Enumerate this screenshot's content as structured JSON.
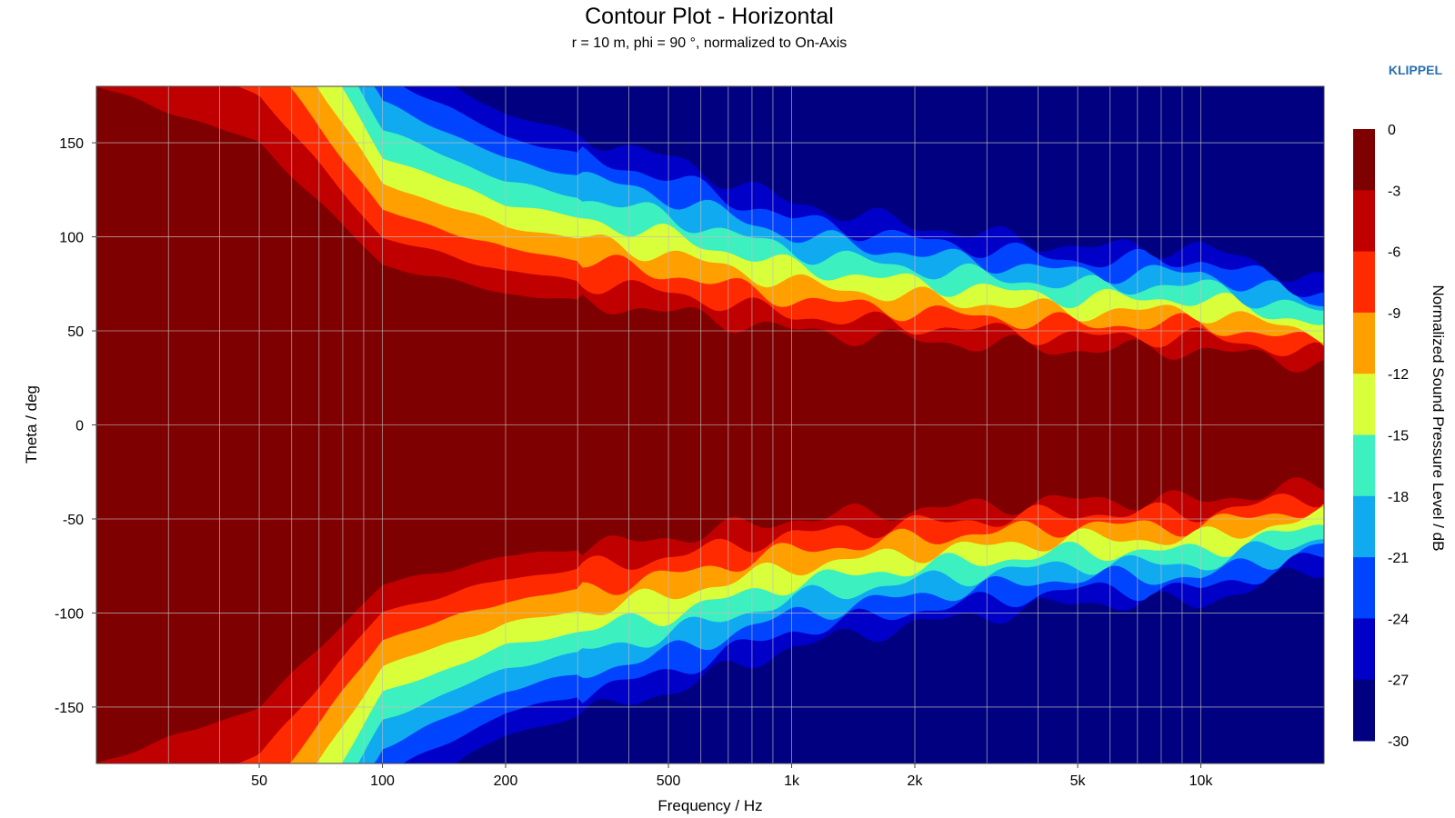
{
  "brand": {
    "text": "KLIPPEL",
    "color": "#2a6fb0"
  },
  "chart_data": {
    "type": "heatmap",
    "title": "Contour Plot - Horizontal",
    "subtitle": "r = 10 m, phi = 90 °, normalized to On-Axis",
    "xlabel": "Frequency / Hz",
    "ylabel": "Theta / deg",
    "colorbar_label": "Normalized Sound Pressure Level / dB",
    "x_scale": "log",
    "xlim": [
      20,
      20000
    ],
    "ylim": [
      -180,
      180
    ],
    "x_ticks": [
      {
        "value": 50,
        "label": "50"
      },
      {
        "value": 100,
        "label": "100"
      },
      {
        "value": 200,
        "label": "200"
      },
      {
        "value": 500,
        "label": "500"
      },
      {
        "value": 1000,
        "label": "1k"
      },
      {
        "value": 2000,
        "label": "2k"
      },
      {
        "value": 5000,
        "label": "5k"
      },
      {
        "value": 10000,
        "label": "10k"
      }
    ],
    "y_ticks": [
      {
        "value": 150,
        "label": "150"
      },
      {
        "value": 100,
        "label": "100"
      },
      {
        "value": 50,
        "label": "50"
      },
      {
        "value": 0,
        "label": "0"
      },
      {
        "value": -50,
        "label": "-50"
      },
      {
        "value": -100,
        "label": "-100"
      },
      {
        "value": -150,
        "label": "-150"
      }
    ],
    "grid": true,
    "colorbar": {
      "min": -30,
      "max": 0,
      "step": 3,
      "tick_labels": [
        "0",
        "-3",
        "-6",
        "-9",
        "-12",
        "-15",
        "-18",
        "-21",
        "-24",
        "-27",
        "-30"
      ],
      "colors_top_to_bottom": [
        "#7f0000",
        "#c00000",
        "#ff2a00",
        "#ffa000",
        "#d8ff3a",
        "#3cf0c0",
        "#10aaf0",
        "#0044ff",
        "#0000c8",
        "#000080"
      ]
    },
    "approx_beamwidth_6dB": [
      {
        "freq": 20,
        "angle": 180
      },
      {
        "freq": 50,
        "angle": 150
      },
      {
        "freq": 100,
        "angle": 85
      },
      {
        "freq": 200,
        "angle": 70
      },
      {
        "freq": 500,
        "angle": 60
      },
      {
        "freq": 1000,
        "angle": 50
      },
      {
        "freq": 2000,
        "angle": 45
      },
      {
        "freq": 5000,
        "angle": 40
      },
      {
        "freq": 10000,
        "angle": 40
      },
      {
        "freq": 20000,
        "angle": 32
      }
    ]
  }
}
